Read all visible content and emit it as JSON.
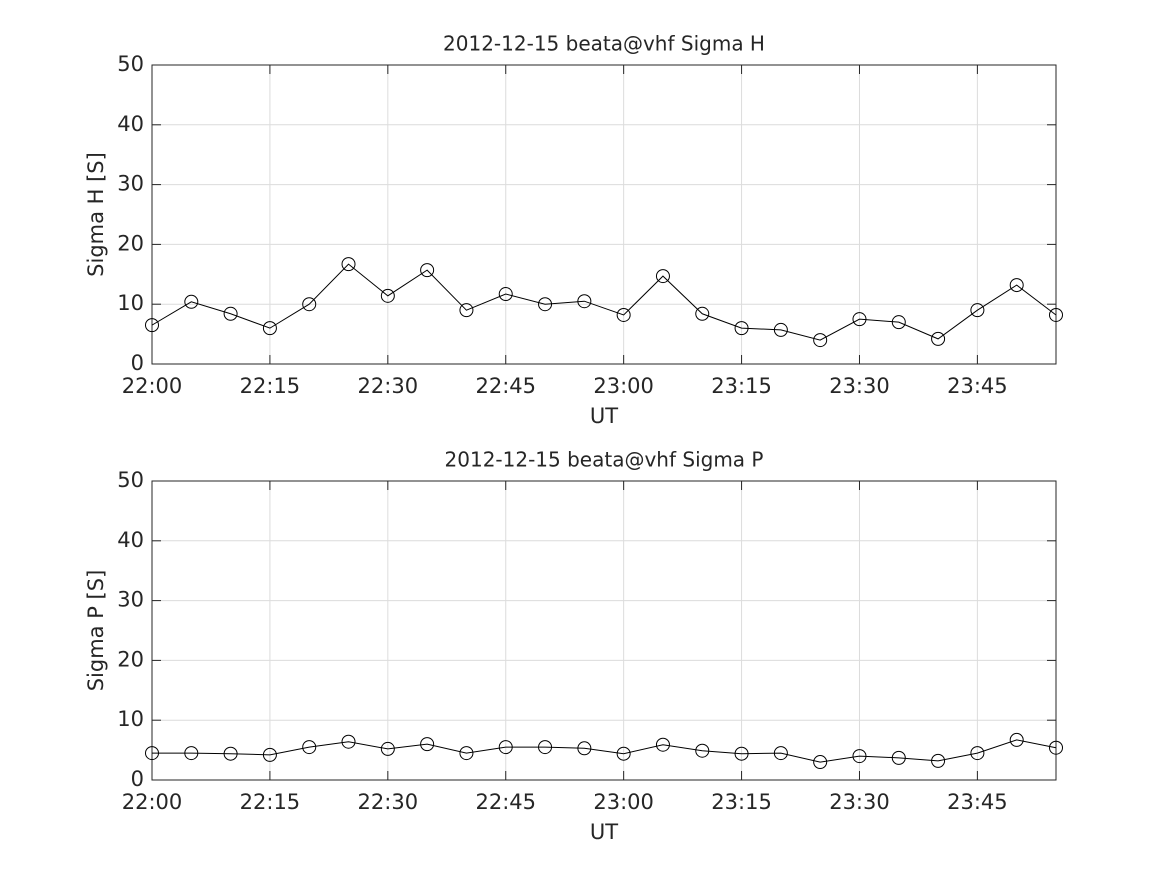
{
  "chart_data": [
    {
      "type": "line",
      "title": "2012-12-15  beata@vhf Sigma H",
      "xlabel": "UT",
      "ylabel": "Sigma H [S]",
      "x": [
        "22:00",
        "22:05",
        "22:10",
        "22:15",
        "22:20",
        "22:25",
        "22:30",
        "22:35",
        "22:40",
        "22:45",
        "22:50",
        "22:55",
        "23:00",
        "23:05",
        "23:10",
        "23:15",
        "23:20",
        "23:25",
        "23:30",
        "23:35",
        "23:40",
        "23:45",
        "23:50",
        "23:55"
      ],
      "values": [
        6.5,
        10.4,
        8.4,
        6.0,
        10.0,
        16.7,
        11.4,
        15.7,
        9.0,
        11.7,
        10.0,
        10.5,
        8.2,
        14.7,
        8.4,
        6.0,
        5.7,
        4.0,
        7.5,
        7.0,
        4.2,
        9.0,
        13.2,
        8.2
      ],
      "color": "#000000",
      "marker": "circle",
      "xlim": [
        "22:00",
        "23:55"
      ],
      "xticks": [
        "22:00",
        "22:15",
        "22:30",
        "22:45",
        "23:00",
        "23:15",
        "23:30",
        "23:45"
      ],
      "ylim": [
        0,
        50
      ],
      "yticks": [
        0,
        10,
        20,
        30,
        40,
        50
      ],
      "grid": true
    },
    {
      "type": "line",
      "title": "2012-12-15  beata@vhf Sigma P",
      "xlabel": "UT",
      "ylabel": "Sigma P [S]",
      "x": [
        "22:00",
        "22:05",
        "22:10",
        "22:15",
        "22:20",
        "22:25",
        "22:30",
        "22:35",
        "22:40",
        "22:45",
        "22:50",
        "22:55",
        "23:00",
        "23:05",
        "23:10",
        "23:15",
        "23:20",
        "23:25",
        "23:30",
        "23:35",
        "23:40",
        "23:45",
        "23:50",
        "23:55"
      ],
      "values": [
        4.5,
        4.5,
        4.4,
        4.2,
        5.5,
        6.4,
        5.2,
        6.0,
        4.5,
        5.5,
        5.5,
        5.3,
        4.4,
        5.9,
        4.9,
        4.4,
        4.5,
        3.0,
        4.0,
        3.7,
        3.2,
        4.5,
        6.7,
        5.4
      ],
      "color": "#000000",
      "marker": "circle",
      "xlim": [
        "22:00",
        "23:55"
      ],
      "xticks": [
        "22:00",
        "22:15",
        "22:30",
        "22:45",
        "23:00",
        "23:15",
        "23:30",
        "23:45"
      ],
      "ylim": [
        0,
        50
      ],
      "yticks": [
        0,
        10,
        20,
        30,
        40,
        50
      ],
      "grid": true
    }
  ]
}
